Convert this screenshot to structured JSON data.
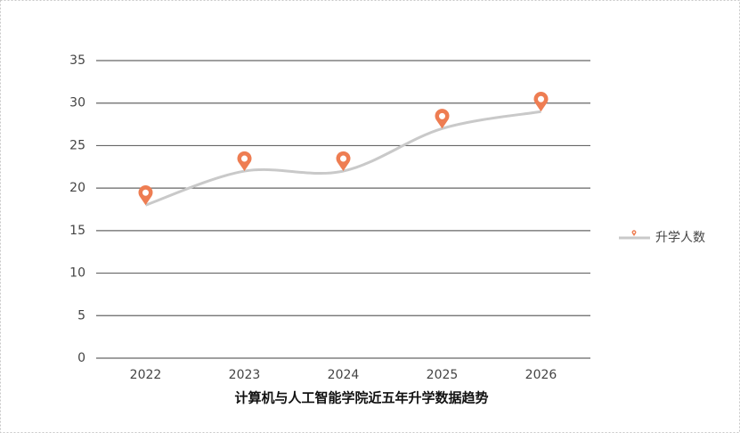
{
  "chart_data": {
    "type": "line",
    "title": "计算机与人工智能学院近五年升学数据趋势",
    "categories": [
      "2022",
      "2023",
      "2024",
      "2025",
      "2026"
    ],
    "series": [
      {
        "name": "升学人数",
        "color": "#c9c9c9",
        "marker_color": "#ee7d52",
        "values": [
          18,
          22,
          22,
          27,
          29
        ]
      }
    ],
    "ylim": [
      0,
      35
    ],
    "yticks": [
      0,
      5,
      10,
      15,
      20,
      25,
      30,
      35
    ],
    "grid": true,
    "smooth": true,
    "legend": "right"
  }
}
